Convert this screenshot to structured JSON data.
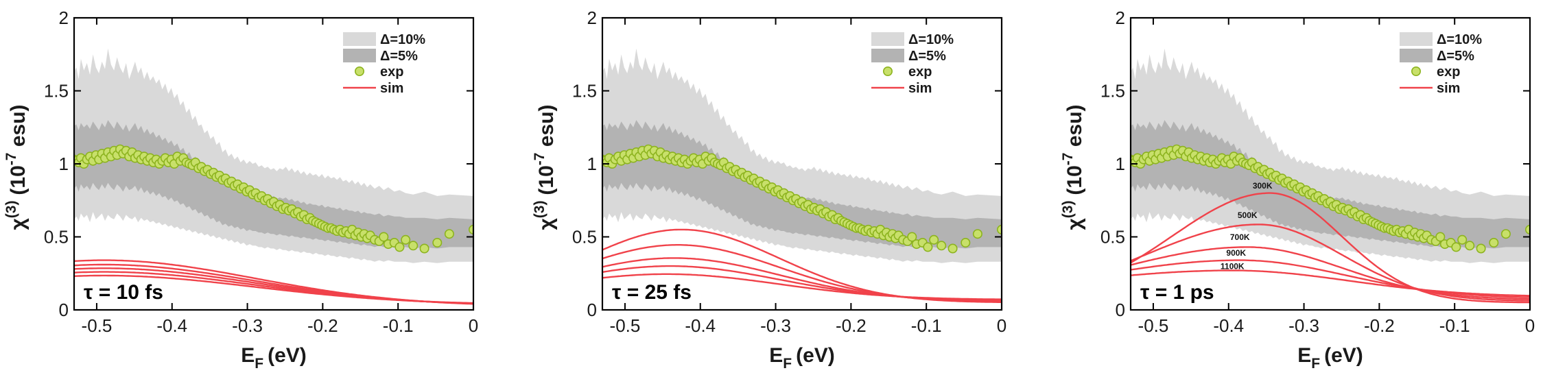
{
  "chart_data": [
    {
      "type": "line",
      "title": "",
      "panel_label": "τ = 10 fs",
      "xlabel_main": "E",
      "xlabel_sub": "F",
      "xlabel_unit": "(eV)",
      "ylabel_main": "χ",
      "ylabel_sup": "(3)",
      "ylabel_unit_open": "(10",
      "ylabel_unit_exp": "-7",
      "ylabel_unit_close": " esu)",
      "xlim": [
        -0.53,
        0
      ],
      "ylim": [
        0,
        2
      ],
      "xticks": [
        -0.5,
        -0.4,
        -0.3,
        -0.2,
        -0.1,
        0
      ],
      "xtick_labels": [
        "-0.5",
        "-0.4",
        "-0.3",
        "-0.2",
        "-0.1",
        "0"
      ],
      "yticks": [
        0,
        0.5,
        1,
        1.5,
        2
      ],
      "ytick_labels": [
        "0",
        "0.5",
        "1",
        "1.5",
        "2"
      ],
      "legend": [
        "Δ=10%",
        "Δ=5%",
        "exp",
        "sim"
      ],
      "sim_series": [
        {
          "name": "sim",
          "peak": 0.34,
          "center": -0.49,
          "width": 0.2,
          "tail": 0.025
        },
        {
          "name": "sim",
          "peak": 0.31,
          "center": -0.49,
          "width": 0.2,
          "tail": 0.028
        },
        {
          "name": "sim",
          "peak": 0.285,
          "center": -0.49,
          "width": 0.2,
          "tail": 0.031
        },
        {
          "name": "sim",
          "peak": 0.26,
          "center": -0.49,
          "width": 0.2,
          "tail": 0.034
        },
        {
          "name": "sim",
          "peak": 0.235,
          "center": -0.49,
          "width": 0.2,
          "tail": 0.037
        }
      ],
      "temperature_labels": []
    },
    {
      "type": "line",
      "title": "",
      "panel_label": "τ = 25 fs",
      "xlabel_main": "E",
      "xlabel_sub": "F",
      "xlabel_unit": "(eV)",
      "ylabel_main": "χ",
      "ylabel_sup": "(3)",
      "ylabel_unit_open": "(10",
      "ylabel_unit_exp": "-7",
      "ylabel_unit_close": " esu)",
      "xlim": [
        -0.53,
        0
      ],
      "ylim": [
        0,
        2
      ],
      "xticks": [
        -0.5,
        -0.4,
        -0.3,
        -0.2,
        -0.1,
        0
      ],
      "xtick_labels": [
        "-0.5",
        "-0.4",
        "-0.3",
        "-0.2",
        "-0.1",
        "0"
      ],
      "yticks": [
        0,
        0.5,
        1,
        1.5,
        2
      ],
      "ytick_labels": [
        "0",
        "0.5",
        "1",
        "1.5",
        "2"
      ],
      "legend": [
        "Δ=10%",
        "Δ=5%",
        "exp",
        "sim"
      ],
      "sim_series": [
        {
          "name": "sim",
          "peak": 0.55,
          "center": -0.425,
          "width": 0.13,
          "tail": 0.05
        },
        {
          "name": "sim",
          "peak": 0.445,
          "center": -0.43,
          "width": 0.135,
          "tail": 0.055
        },
        {
          "name": "sim",
          "peak": 0.355,
          "center": -0.435,
          "width": 0.14,
          "tail": 0.06
        },
        {
          "name": "sim",
          "peak": 0.3,
          "center": -0.44,
          "width": 0.145,
          "tail": 0.065
        },
        {
          "name": "sim",
          "peak": 0.245,
          "center": -0.445,
          "width": 0.15,
          "tail": 0.07
        }
      ],
      "temperature_labels": []
    },
    {
      "type": "line",
      "title": "",
      "panel_label": "τ = 1 ps",
      "xlabel_main": "E",
      "xlabel_sub": "F",
      "xlabel_unit": "(eV)",
      "ylabel_main": "χ",
      "ylabel_sup": "(3)",
      "ylabel_unit_open": "(10",
      "ylabel_unit_exp": "-7",
      "ylabel_unit_close": " esu)",
      "xlim": [
        -0.53,
        0
      ],
      "ylim": [
        0,
        2
      ],
      "xticks": [
        -0.5,
        -0.4,
        -0.3,
        -0.2,
        -0.1,
        0
      ],
      "xtick_labels": [
        "-0.5",
        "-0.4",
        "-0.3",
        "-0.2",
        "-0.1",
        "0"
      ],
      "yticks": [
        0,
        0.5,
        1,
        1.5,
        2
      ],
      "ytick_labels": [
        "0",
        "0.5",
        "1",
        "1.5",
        "2"
      ],
      "legend": [
        "Δ=10%",
        "Δ=5%",
        "exp",
        "sim"
      ],
      "sim_series": [
        {
          "name": "300K",
          "peak": 0.8,
          "center": -0.345,
          "width": 0.13,
          "width_right": 0.095,
          "tail": 0.05
        },
        {
          "name": "500K",
          "peak": 0.585,
          "center": -0.36,
          "width": 0.15,
          "width_right": 0.11,
          "tail": 0.06
        },
        {
          "name": "700K",
          "peak": 0.43,
          "center": -0.375,
          "width": 0.17,
          "width_right": 0.125,
          "tail": 0.07
        },
        {
          "name": "900K",
          "peak": 0.34,
          "center": -0.385,
          "width": 0.19,
          "width_right": 0.14,
          "tail": 0.08
        },
        {
          "name": "1100K",
          "peak": 0.27,
          "center": -0.395,
          "width": 0.21,
          "width_right": 0.155,
          "tail": 0.09
        }
      ],
      "temperature_labels": [
        {
          "text": "300K",
          "x": -0.355,
          "y": 0.83
        },
        {
          "text": "500K",
          "x": -0.375,
          "y": 0.63
        },
        {
          "text": "700K",
          "x": -0.385,
          "y": 0.48
        },
        {
          "text": "900K",
          "x": -0.39,
          "y": 0.37
        },
        {
          "text": "1100K",
          "x": -0.395,
          "y": 0.28
        }
      ]
    }
  ],
  "shared_experimental": {
    "exp_x": [
      -0.53,
      -0.527,
      -0.524,
      -0.521,
      -0.517,
      -0.513,
      -0.509,
      -0.505,
      -0.501,
      -0.497,
      -0.493,
      -0.489,
      -0.485,
      -0.481,
      -0.477,
      -0.473,
      -0.469,
      -0.465,
      -0.461,
      -0.457,
      -0.453,
      -0.449,
      -0.445,
      -0.441,
      -0.437,
      -0.433,
      -0.429,
      -0.425,
      -0.421,
      -0.417,
      -0.413,
      -0.409,
      -0.405,
      -0.401,
      -0.397,
      -0.393,
      -0.389,
      -0.385,
      -0.381,
      -0.377,
      -0.373,
      -0.369,
      -0.365,
      -0.361,
      -0.357,
      -0.353,
      -0.349,
      -0.345,
      -0.341,
      -0.337,
      -0.333,
      -0.329,
      -0.325,
      -0.321,
      -0.317,
      -0.313,
      -0.309,
      -0.305,
      -0.301,
      -0.297,
      -0.293,
      -0.289,
      -0.285,
      -0.281,
      -0.277,
      -0.273,
      -0.269,
      -0.265,
      -0.261,
      -0.257,
      -0.253,
      -0.249,
      -0.245,
      -0.241,
      -0.237,
      -0.233,
      -0.229,
      -0.225,
      -0.221,
      -0.217,
      -0.213,
      -0.209,
      -0.205,
      -0.201,
      -0.197,
      -0.193,
      -0.189,
      -0.185,
      -0.181,
      -0.177,
      -0.173,
      -0.169,
      -0.165,
      -0.161,
      -0.157,
      -0.153,
      -0.149,
      -0.145,
      -0.141,
      -0.137,
      -0.131,
      -0.125,
      -0.119,
      -0.113,
      -0.105,
      -0.098,
      -0.09,
      -0.08,
      -0.065,
      -0.048,
      -0.032,
      0.0
    ],
    "exp_y": [
      1.03,
      1.02,
      1.01,
      1.04,
      1.0,
      1.03,
      1.05,
      1.02,
      1.06,
      1.03,
      1.07,
      1.04,
      1.08,
      1.05,
      1.09,
      1.06,
      1.1,
      1.07,
      1.09,
      1.05,
      1.08,
      1.04,
      1.06,
      1.03,
      1.05,
      1.02,
      1.04,
      1.01,
      1.03,
      1.0,
      1.02,
      1.04,
      1.01,
      1.03,
      1.0,
      1.05,
      1.02,
      1.04,
      1.01,
      1.0,
      0.99,
      1.01,
      0.97,
      0.98,
      0.95,
      0.96,
      0.93,
      0.94,
      0.91,
      0.92,
      0.89,
      0.9,
      0.87,
      0.88,
      0.85,
      0.86,
      0.83,
      0.84,
      0.81,
      0.82,
      0.79,
      0.8,
      0.77,
      0.78,
      0.75,
      0.76,
      0.73,
      0.74,
      0.71,
      0.72,
      0.69,
      0.7,
      0.68,
      0.69,
      0.66,
      0.67,
      0.64,
      0.65,
      0.62,
      0.63,
      0.61,
      0.6,
      0.59,
      0.58,
      0.57,
      0.56,
      0.56,
      0.55,
      0.54,
      0.55,
      0.53,
      0.54,
      0.52,
      0.55,
      0.51,
      0.53,
      0.5,
      0.52,
      0.49,
      0.51,
      0.48,
      0.47,
      0.5,
      0.45,
      0.46,
      0.43,
      0.48,
      0.44,
      0.42,
      0.46,
      0.52,
      0.55
    ],
    "band10_upper": [
      1.63,
      1.66,
      1.58,
      1.72,
      1.64,
      1.69,
      1.61,
      1.75,
      1.66,
      1.62,
      1.7,
      1.65,
      1.79,
      1.68,
      1.64,
      1.73,
      1.66,
      1.62,
      1.69,
      1.58,
      1.64,
      1.7,
      1.62,
      1.66,
      1.58,
      1.63,
      1.57,
      1.6,
      1.55,
      1.58,
      1.51,
      1.55,
      1.48,
      1.52,
      1.45,
      1.48,
      1.4,
      1.43,
      1.35,
      1.38,
      1.3,
      1.33,
      1.26,
      1.27,
      1.21,
      1.23,
      1.17,
      1.19,
      1.13,
      1.15,
      1.08,
      1.1,
      1.05,
      1.07,
      1.03,
      1.05,
      1.01,
      1.03,
      1.0,
      1.02,
      1.0,
      1.01,
      0.98,
      0.99,
      0.97,
      0.98,
      0.96,
      0.97,
      0.95,
      0.97,
      0.96,
      0.98,
      0.95,
      0.97,
      0.94,
      0.96,
      0.93,
      0.95,
      0.92,
      0.94,
      0.92,
      0.93,
      0.91,
      0.93,
      0.9,
      0.92,
      0.9,
      0.91,
      0.89,
      0.91,
      0.88,
      0.89,
      0.87,
      0.89,
      0.86,
      0.88,
      0.85,
      0.87,
      0.84,
      0.86,
      0.83,
      0.85,
      0.82,
      0.84,
      0.81,
      0.82,
      0.8,
      0.79,
      0.81,
      0.78,
      0.79,
      0.78
    ],
    "band10_lower": [
      0.62,
      0.64,
      0.61,
      0.66,
      0.63,
      0.65,
      0.6,
      0.67,
      0.62,
      0.64,
      0.66,
      0.61,
      0.65,
      0.63,
      0.62,
      0.66,
      0.64,
      0.61,
      0.65,
      0.63,
      0.62,
      0.64,
      0.6,
      0.63,
      0.61,
      0.62,
      0.6,
      0.61,
      0.59,
      0.6,
      0.58,
      0.59,
      0.57,
      0.58,
      0.56,
      0.57,
      0.55,
      0.56,
      0.54,
      0.55,
      0.53,
      0.54,
      0.52,
      0.53,
      0.51,
      0.52,
      0.5,
      0.51,
      0.49,
      0.5,
      0.48,
      0.49,
      0.47,
      0.48,
      0.46,
      0.47,
      0.45,
      0.46,
      0.44,
      0.45,
      0.44,
      0.44,
      0.43,
      0.43,
      0.42,
      0.43,
      0.42,
      0.42,
      0.41,
      0.42,
      0.41,
      0.41,
      0.4,
      0.41,
      0.4,
      0.4,
      0.39,
      0.4,
      0.39,
      0.39,
      0.38,
      0.39,
      0.38,
      0.38,
      0.37,
      0.38,
      0.37,
      0.37,
      0.36,
      0.37,
      0.36,
      0.36,
      0.35,
      0.36,
      0.35,
      0.35,
      0.34,
      0.35,
      0.34,
      0.34,
      0.33,
      0.34,
      0.33,
      0.34,
      0.33,
      0.33,
      0.33,
      0.32,
      0.33,
      0.32,
      0.33,
      0.33
    ],
    "band5_upper": [
      1.26,
      1.27,
      1.23,
      1.28,
      1.25,
      1.27,
      1.24,
      1.29,
      1.26,
      1.23,
      1.28,
      1.25,
      1.3,
      1.27,
      1.24,
      1.29,
      1.26,
      1.23,
      1.27,
      1.22,
      1.25,
      1.28,
      1.23,
      1.26,
      1.21,
      1.24,
      1.2,
      1.22,
      1.18,
      1.2,
      1.16,
      1.18,
      1.14,
      1.16,
      1.12,
      1.14,
      1.09,
      1.11,
      1.06,
      1.08,
      1.03,
      1.05,
      1.0,
      1.01,
      0.97,
      0.98,
      0.94,
      0.95,
      0.91,
      0.92,
      0.88,
      0.89,
      0.86,
      0.87,
      0.84,
      0.85,
      0.82,
      0.83,
      0.81,
      0.82,
      0.8,
      0.81,
      0.79,
      0.8,
      0.78,
      0.79,
      0.77,
      0.78,
      0.76,
      0.77,
      0.76,
      0.77,
      0.75,
      0.76,
      0.74,
      0.75,
      0.73,
      0.74,
      0.72,
      0.73,
      0.72,
      0.72,
      0.71,
      0.72,
      0.7,
      0.71,
      0.7,
      0.7,
      0.69,
      0.7,
      0.68,
      0.69,
      0.68,
      0.68,
      0.67,
      0.68,
      0.66,
      0.67,
      0.66,
      0.66,
      0.65,
      0.66,
      0.64,
      0.65,
      0.64,
      0.64,
      0.63,
      0.63,
      0.63,
      0.62,
      0.63,
      0.62
    ],
    "band5_lower": [
      0.83,
      0.85,
      0.81,
      0.86,
      0.83,
      0.85,
      0.82,
      0.87,
      0.84,
      0.82,
      0.86,
      0.83,
      0.87,
      0.84,
      0.82,
      0.86,
      0.84,
      0.81,
      0.85,
      0.82,
      0.83,
      0.85,
      0.81,
      0.84,
      0.8,
      0.82,
      0.79,
      0.81,
      0.78,
      0.8,
      0.77,
      0.78,
      0.75,
      0.77,
      0.74,
      0.75,
      0.72,
      0.73,
      0.7,
      0.71,
      0.68,
      0.69,
      0.66,
      0.67,
      0.64,
      0.65,
      0.62,
      0.63,
      0.6,
      0.61,
      0.58,
      0.59,
      0.57,
      0.58,
      0.56,
      0.57,
      0.55,
      0.56,
      0.54,
      0.55,
      0.54,
      0.54,
      0.53,
      0.53,
      0.52,
      0.53,
      0.52,
      0.52,
      0.51,
      0.52,
      0.51,
      0.51,
      0.5,
      0.51,
      0.5,
      0.5,
      0.49,
      0.5,
      0.49,
      0.49,
      0.48,
      0.49,
      0.48,
      0.48,
      0.47,
      0.48,
      0.47,
      0.47,
      0.46,
      0.47,
      0.46,
      0.46,
      0.45,
      0.46,
      0.45,
      0.45,
      0.44,
      0.45,
      0.44,
      0.44,
      0.43,
      0.44,
      0.43,
      0.44,
      0.43,
      0.43,
      0.43,
      0.42,
      0.43,
      0.42,
      0.43,
      0.43
    ]
  },
  "legend_labels": {
    "band10": "Δ=10%",
    "band5": "Δ=5%",
    "exp": "exp",
    "sim": "sim"
  },
  "colors": {
    "band10": "#d9d9d9",
    "band5": "#b3b3b3",
    "exp_fill": "#c8e06a",
    "exp_stroke": "#8cb31e",
    "sim": "#f0424a",
    "axis": "#000000"
  }
}
